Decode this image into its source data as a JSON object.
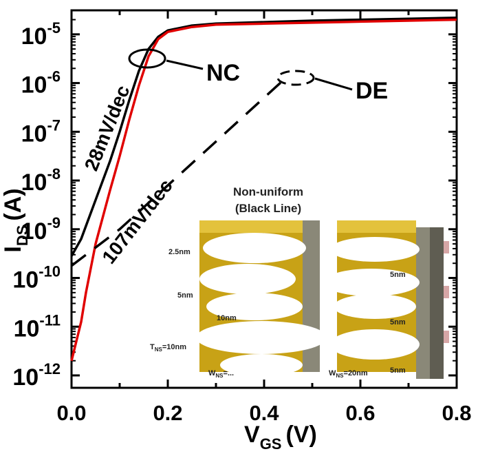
{
  "chart_data": {
    "type": "line",
    "xlabel": "V",
    "xlabel_sub": "GS",
    "xlabel_unit": "(V)",
    "ylabel": "I",
    "ylabel_sub": "DS",
    "ylabel_unit": "(A)",
    "xlim": [
      0.0,
      0.8
    ],
    "ylim_log10": [
      -12,
      -4.55
    ],
    "y_scale": "log",
    "grid": false,
    "x_ticks": [
      {
        "value": 0.0,
        "label": "0.0"
      },
      {
        "value": 0.2,
        "label": "0.2"
      },
      {
        "value": 0.4,
        "label": "0.4"
      },
      {
        "value": 0.6,
        "label": "0.6"
      },
      {
        "value": 0.8,
        "label": "0.8"
      }
    ],
    "y_ticks": [
      {
        "exp": -5,
        "base": "10",
        "sup": "-5"
      },
      {
        "exp": -6,
        "base": "10",
        "sup": "-6"
      },
      {
        "exp": -7,
        "base": "10",
        "sup": "-7"
      },
      {
        "exp": -8,
        "base": "10",
        "sup": "-8"
      },
      {
        "exp": -9,
        "base": "10",
        "sup": "-9"
      },
      {
        "exp": -10,
        "base": "10",
        "sup": "-10"
      },
      {
        "exp": -11,
        "base": "10",
        "sup": "-11"
      },
      {
        "exp": -12,
        "base": "10",
        "sup": "-12"
      }
    ],
    "series": [
      {
        "color": "#000000",
        "dash": false,
        "x": [
          0.0,
          0.02,
          0.05,
          0.08,
          0.1,
          0.12,
          0.14,
          0.16,
          0.18,
          0.2,
          0.25,
          0.3,
          0.4,
          0.5,
          0.6,
          0.7,
          0.8
        ],
        "log10": [
          -9.55,
          -9.2,
          -8.4,
          -7.6,
          -7.0,
          -6.35,
          -5.75,
          -5.3,
          -5.05,
          -4.92,
          -4.82,
          -4.78,
          -4.75,
          -4.72,
          -4.7,
          -4.68,
          -4.66
        ]
      },
      {
        "color": "#e00000",
        "dash": false,
        "x": [
          0.0,
          0.01,
          0.02,
          0.03,
          0.05,
          0.08,
          0.1,
          0.12,
          0.14,
          0.16,
          0.18,
          0.2,
          0.25,
          0.3,
          0.4,
          0.5,
          0.6,
          0.7,
          0.8
        ],
        "log10": [
          -11.7,
          -11.3,
          -10.9,
          -10.3,
          -9.3,
          -8.2,
          -7.5,
          -6.75,
          -6.05,
          -5.45,
          -5.1,
          -4.95,
          -4.85,
          -4.8,
          -4.78,
          -4.76,
          -4.74,
          -4.72,
          -4.7
        ]
      },
      {
        "color": "#000000",
        "dash": true,
        "x": [
          0.0,
          0.1,
          0.2,
          0.3,
          0.4,
          0.45
        ],
        "log10": [
          -9.75,
          -9.0,
          -8.1,
          -7.2,
          -6.3,
          -5.85
        ]
      }
    ],
    "annotations": [
      {
        "text": "NC",
        "point": [
          0.15,
          -5.2
        ]
      },
      {
        "text": "DE",
        "point": [
          0.46,
          -5.75
        ]
      },
      {
        "text": "28mV/dec",
        "point": [
          0.07,
          -7.5
        ]
      },
      {
        "text": "107mV/dec",
        "point": [
          0.14,
          -9.2
        ]
      }
    ]
  },
  "inset": {
    "title_line1": "Non-uniform",
    "title_line2": "(Black Line)",
    "labels": {
      "t1": "2.5nm",
      "t2": "5nm",
      "t3": "10nm",
      "tns": "T",
      "tns_sub": "NS",
      "tns_val": "=10nm",
      "r1": "5nm",
      "r2": "5nm",
      "r3": "5nm",
      "wns_left": "W",
      "wns_left_sub": "NS",
      "wns_left_val": "=...",
      "wns_right": "W",
      "wns_right_sub": "NS",
      "wns_right_val": "=20nm"
    },
    "colors": {
      "gold": "#c8a216",
      "gold_light": "#e3c23c",
      "grey": "#8a8878",
      "dark": "#5f5d52",
      "pink": "#d6a6a6"
    }
  }
}
